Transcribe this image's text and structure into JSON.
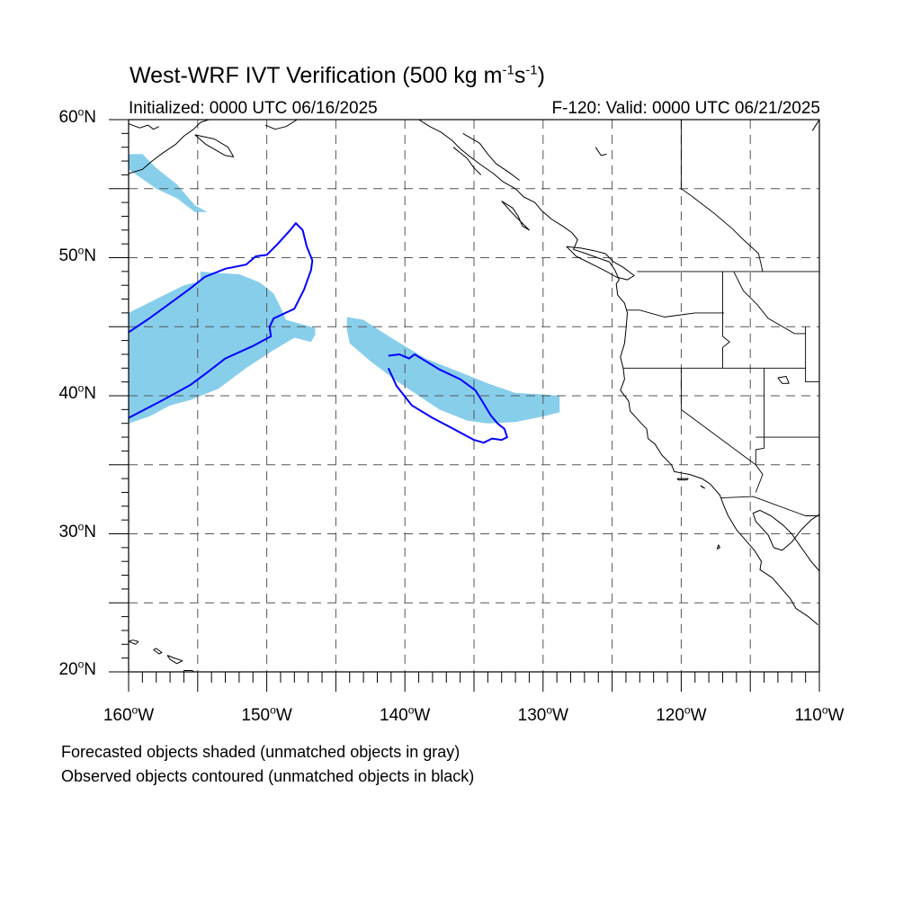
{
  "header": {
    "title_main": "West-WRF IVT Verification (500 kg m",
    "title_exp1": "-1",
    "title_mid": "s",
    "title_exp2": "-1",
    "title_end": ")",
    "initialized": "Initialized: 0000 UTC 06/16/2025",
    "valid": "F-120: Valid: 0000 UTC 06/21/2025"
  },
  "map": {
    "lon_range": [
      -160,
      -110
    ],
    "lat_range": [
      20,
      60
    ],
    "grid": "dashed every 5 degrees",
    "lat_labels": [
      {
        "lat": 60,
        "num": "60",
        "hemi": "N"
      },
      {
        "lat": 50,
        "num": "50",
        "hemi": "N"
      },
      {
        "lat": 40,
        "num": "40",
        "hemi": "N"
      },
      {
        "lat": 30,
        "num": "30",
        "hemi": "N"
      },
      {
        "lat": 20,
        "num": "20",
        "hemi": "N"
      }
    ],
    "lon_labels": [
      {
        "lon": -160,
        "num": "160",
        "hemi": "W"
      },
      {
        "lon": -150,
        "num": "150",
        "hemi": "W"
      },
      {
        "lon": -140,
        "num": "140",
        "hemi": "W"
      },
      {
        "lon": -130,
        "num": "130",
        "hemi": "W"
      },
      {
        "lon": -120,
        "num": "120",
        "hemi": "W"
      },
      {
        "lon": -110,
        "num": "110",
        "hemi": "W"
      }
    ],
    "colors": {
      "forecast_fill": "#87ceeb",
      "observed_line": "#0000ff",
      "coast": "#000000",
      "grid": "#555555"
    }
  },
  "forecast_objects": [
    {
      "name": "alaska-gulf-object",
      "points": [
        [
          -160,
          57.5
        ],
        [
          -159,
          57.5
        ],
        [
          -158,
          56.5
        ],
        [
          -156.5,
          55.3
        ],
        [
          -155.2,
          53.8
        ],
        [
          -154.3,
          53.3
        ],
        [
          -155.2,
          53.3
        ],
        [
          -156.5,
          54.3
        ],
        [
          -158,
          55.0
        ],
        [
          -160,
          56.4
        ]
      ]
    },
    {
      "name": "west-large-object",
      "points": [
        [
          -160,
          46.0
        ],
        [
          -158,
          47.0
        ],
        [
          -156,
          48.0
        ],
        [
          -154.8,
          48.3
        ],
        [
          -154.8,
          49.0
        ],
        [
          -153.8,
          48.9
        ],
        [
          -152,
          48.8
        ],
        [
          -150.5,
          48.2
        ],
        [
          -149.5,
          47.4
        ],
        [
          -149.0,
          46.4
        ],
        [
          -148.6,
          45.5
        ],
        [
          -146.5,
          44.9
        ],
        [
          -146.5,
          44.4
        ],
        [
          -146.8,
          43.9
        ],
        [
          -148.0,
          44.2
        ],
        [
          -149.5,
          43.3
        ],
        [
          -151.5,
          42.0
        ],
        [
          -153.5,
          40.5
        ],
        [
          -155.5,
          39.7
        ],
        [
          -157,
          39.3
        ],
        [
          -158.5,
          38.5
        ],
        [
          -160,
          38.0
        ]
      ]
    },
    {
      "name": "central-band-object",
      "points": [
        [
          -144.2,
          45.7
        ],
        [
          -143.0,
          45.5
        ],
        [
          -141,
          44.2
        ],
        [
          -138.5,
          42.7
        ],
        [
          -136,
          41.7
        ],
        [
          -134,
          40.9
        ],
        [
          -132,
          40.2
        ],
        [
          -130,
          40.1
        ],
        [
          -128.8,
          40.0
        ],
        [
          -128.8,
          38.8
        ],
        [
          -130,
          38.5
        ],
        [
          -132,
          38.1
        ],
        [
          -134,
          38.0
        ],
        [
          -135.5,
          38.2
        ],
        [
          -137.5,
          39.0
        ],
        [
          -139,
          40.0
        ],
        [
          -140.5,
          41.0
        ],
        [
          -142.5,
          42.5
        ],
        [
          -144.0,
          43.8
        ],
        [
          -144.2,
          44.8
        ]
      ]
    }
  ],
  "observed_objects": [
    {
      "name": "west-observed-contour",
      "points": [
        [
          -160,
          44.6
        ],
        [
          -158.5,
          45.6
        ],
        [
          -157,
          46.7
        ],
        [
          -155.5,
          47.8
        ],
        [
          -154.5,
          48.6
        ],
        [
          -153,
          49.2
        ],
        [
          -151.5,
          49.5
        ],
        [
          -150.8,
          50.1
        ],
        [
          -150,
          50.2
        ],
        [
          -149.2,
          51.0
        ],
        [
          -148.3,
          52.0
        ],
        [
          -147.9,
          52.5
        ],
        [
          -147.4,
          52.0
        ],
        [
          -147.1,
          50.8
        ],
        [
          -146.7,
          49.8
        ],
        [
          -146.8,
          49.1
        ],
        [
          -147.3,
          47.7
        ],
        [
          -148.0,
          46.3
        ],
        [
          -149.5,
          45.6
        ],
        [
          -149.8,
          45.0
        ],
        [
          -149.7,
          44.3
        ],
        [
          -151,
          43.6
        ],
        [
          -153,
          42.7
        ],
        [
          -154.3,
          41.7
        ],
        [
          -155.5,
          40.8
        ],
        [
          -157.5,
          39.7
        ],
        [
          -160,
          38.4
        ]
      ]
    },
    {
      "name": "central-observed-contour",
      "points": [
        [
          -141.2,
          42.9
        ],
        [
          -140.4,
          43.0
        ],
        [
          -139.7,
          42.7
        ],
        [
          -139.3,
          43.0
        ],
        [
          -138.8,
          42.7
        ],
        [
          -137.5,
          41.9
        ],
        [
          -136,
          41.2
        ],
        [
          -134.9,
          40.4
        ],
        [
          -134.4,
          39.6
        ],
        [
          -133.8,
          38.6
        ],
        [
          -133.3,
          38.0
        ],
        [
          -132.8,
          37.6
        ],
        [
          -132.6,
          37.0
        ],
        [
          -133.0,
          36.8
        ],
        [
          -133.7,
          36.9
        ],
        [
          -134.3,
          36.6
        ],
        [
          -135.0,
          36.8
        ],
        [
          -136.5,
          37.6
        ],
        [
          -138,
          38.4
        ],
        [
          -139.5,
          39.3
        ],
        [
          -140.6,
          40.7
        ],
        [
          -141.2,
          42.0
        ]
      ]
    }
  ],
  "coastlines": [
    [
      [
        -160,
        56.1
      ],
      [
        -159,
        56.4
      ],
      [
        -158.3,
        57.0
      ],
      [
        -157.5,
        57.6
      ],
      [
        -156.6,
        58.2
      ],
      [
        -156.0,
        58.8
      ],
      [
        -155.3,
        59.3
      ],
      [
        -154.8,
        59.8
      ],
      [
        -154.2,
        60.0
      ]
    ],
    [
      [
        -160,
        59.7
      ],
      [
        -159.2,
        59.4
      ],
      [
        -158.6,
        59.6
      ],
      [
        -158.2,
        59.3
      ],
      [
        -157.8,
        59.5
      ]
    ],
    [
      [
        -155.2,
        58.9
      ],
      [
        -154.4,
        58.2
      ],
      [
        -153.0,
        57.4
      ],
      [
        -152.4,
        57.3
      ],
      [
        -152.8,
        58.0
      ],
      [
        -153.8,
        58.6
      ],
      [
        -155.2,
        58.9
      ]
    ],
    [
      [
        -150.1,
        59.6
      ],
      [
        -149.4,
        59.3
      ],
      [
        -148.6,
        59.5
      ],
      [
        -147.8,
        60.0
      ]
    ],
    [
      [
        -139,
        60
      ],
      [
        -138.2,
        59.5
      ],
      [
        -137.4,
        59.1
      ],
      [
        -136.6,
        58.5
      ],
      [
        -136.0,
        57.9
      ],
      [
        -135.4,
        57.4
      ],
      [
        -134.6,
        56.8
      ],
      [
        -133.6,
        56.1
      ],
      [
        -132.9,
        55.5
      ],
      [
        -132.0,
        55.0
      ],
      [
        -131.4,
        54.4
      ],
      [
        -130.6,
        54.0
      ],
      [
        -130.1,
        53.4
      ],
      [
        -129.4,
        52.8
      ],
      [
        -128.6,
        52.3
      ],
      [
        -127.9,
        51.8
      ],
      [
        -127.5,
        51.3
      ],
      [
        -127.8,
        50.6
      ],
      [
        -126.9,
        50.3
      ],
      [
        -125.8,
        49.9
      ],
      [
        -125.2,
        49.7
      ],
      [
        -124.8,
        49.1
      ],
      [
        -124.5,
        48.4
      ],
      [
        -124.7,
        48.1
      ],
      [
        -124.6,
        47.3
      ],
      [
        -124.1,
        46.7
      ],
      [
        -123.9,
        46.0
      ],
      [
        -124.0,
        44.8
      ],
      [
        -124.1,
        43.8
      ],
      [
        -124.4,
        42.8
      ],
      [
        -124.2,
        42.0
      ],
      [
        -124.1,
        41.2
      ],
      [
        -124.4,
        40.4
      ],
      [
        -123.8,
        39.6
      ],
      [
        -123.7,
        38.9
      ],
      [
        -122.9,
        38.0
      ],
      [
        -122.5,
        37.6
      ],
      [
        -122.4,
        36.9
      ],
      [
        -121.9,
        36.5
      ],
      [
        -121.4,
        35.7
      ],
      [
        -120.7,
        35.0
      ],
      [
        -120.5,
        34.5
      ],
      [
        -119.4,
        34.3
      ],
      [
        -118.5,
        34.0
      ],
      [
        -117.9,
        33.6
      ],
      [
        -117.2,
        32.8
      ],
      [
        -116.9,
        32.0
      ],
      [
        -116.6,
        31.3
      ],
      [
        -116.0,
        30.3
      ],
      [
        -115.4,
        29.6
      ],
      [
        -114.7,
        28.8
      ],
      [
        -114.2,
        28.0
      ],
      [
        -114.3,
        27.4
      ],
      [
        -113.4,
        26.8
      ],
      [
        -112.7,
        26.0
      ],
      [
        -112.1,
        25.3
      ],
      [
        -111.7,
        24.6
      ],
      [
        -110.8,
        24.0
      ],
      [
        -110.1,
        23.4
      ]
    ],
    [
      [
        -133.0,
        54.1
      ],
      [
        -132.2,
        53.6
      ],
      [
        -131.8,
        53.0
      ],
      [
        -131.5,
        52.3
      ],
      [
        -131.0,
        52.0
      ],
      [
        -131.6,
        52.6
      ],
      [
        -132.3,
        53.3
      ],
      [
        -133.0,
        54.1
      ]
    ],
    [
      [
        -125.5,
        50.3
      ],
      [
        -124.9,
        49.7
      ],
      [
        -124.2,
        49.3
      ],
      [
        -123.4,
        48.7
      ],
      [
        -123.9,
        48.4
      ],
      [
        -124.7,
        48.6
      ],
      [
        -125.4,
        49.0
      ],
      [
        -126.2,
        49.4
      ],
      [
        -127.6,
        50.1
      ],
      [
        -128.3,
        50.8
      ],
      [
        -127.3,
        50.7
      ],
      [
        -126.3,
        50.5
      ],
      [
        -125.5,
        50.3
      ]
    ],
    [
      [
        -110,
        31.4
      ],
      [
        -110.6,
        31.0
      ],
      [
        -111.3,
        30.3
      ],
      [
        -112.0,
        29.4
      ],
      [
        -112.7,
        28.8
      ],
      [
        -113.3,
        29.0
      ],
      [
        -113.7,
        29.9
      ],
      [
        -114.6,
        30.9
      ],
      [
        -114.8,
        31.5
      ],
      [
        -114.3,
        31.7
      ],
      [
        -113.5,
        31.3
      ],
      [
        -112.6,
        30.6
      ],
      [
        -112.0,
        30.0
      ],
      [
        -111.3,
        29.0
      ],
      [
        -110.6,
        28.0
      ],
      [
        -110.0,
        27.3
      ]
    ],
    [
      [
        -110,
        60
      ],
      [
        -110.5,
        59.2
      ]
    ],
    [
      [
        -160,
        22.2
      ],
      [
        -159.5,
        22.0
      ],
      [
        -159.3,
        22.2
      ],
      [
        -159.7,
        22.3
      ],
      [
        -160,
        22.2
      ]
    ],
    [
      [
        -158.2,
        21.6
      ],
      [
        -157.8,
        21.3
      ],
      [
        -157.6,
        21.4
      ],
      [
        -158.0,
        21.7
      ],
      [
        -158.2,
        21.6
      ]
    ],
    [
      [
        -157.2,
        21.2
      ],
      [
        -156.7,
        21.0
      ],
      [
        -156.1,
        20.8
      ],
      [
        -156.5,
        20.6
      ],
      [
        -157.0,
        20.9
      ],
      [
        -157.2,
        21.2
      ]
    ],
    [
      [
        -156.0,
        20.1
      ],
      [
        -155.4,
        20.1
      ],
      [
        -154.8,
        19.6
      ],
      [
        -155.4,
        19.3
      ],
      [
        -156.0,
        19.7
      ],
      [
        -156.0,
        20.1
      ]
    ],
    [
      [
        -120.3,
        34.0
      ],
      [
        -119.5,
        34.0
      ],
      [
        -119.6,
        33.9
      ],
      [
        -120.2,
        33.9
      ],
      [
        -120.3,
        34.0
      ]
    ],
    [
      [
        -118.6,
        33.5
      ],
      [
        -118.3,
        33.3
      ],
      [
        -118.5,
        33.4
      ],
      [
        -118.6,
        33.5
      ]
    ],
    [
      [
        -117.4,
        28.9
      ],
      [
        -117.2,
        29.0
      ],
      [
        -117.3,
        29.2
      ],
      [
        -117.4,
        28.9
      ]
    ],
    [
      [
        -135.8,
        59.0
      ],
      [
        -134.6,
        58.3
      ],
      [
        -134.0,
        57.5
      ],
      [
        -133.4,
        56.8
      ],
      [
        -132.5,
        56.2
      ],
      [
        -131.7,
        55.6
      ]
    ],
    [
      [
        -136.5,
        58.0
      ],
      [
        -135.5,
        57.2
      ],
      [
        -135.0,
        56.5
      ],
      [
        -134.5,
        56.0
      ]
    ],
    [
      [
        -113.0,
        41.3
      ],
      [
        -112.4,
        41.4
      ],
      [
        -112.2,
        40.9
      ],
      [
        -112.7,
        40.9
      ],
      [
        -113.0,
        41.3
      ]
    ],
    [
      [
        -126.2,
        58.0
      ],
      [
        -125.8,
        57.4
      ],
      [
        -125.4,
        57.5
      ]
    ]
  ],
  "boundaries": [
    [
      [
        -123.2,
        49.0
      ],
      [
        -110,
        49.0
      ]
    ],
    [
      [
        -124.0,
        46.2
      ],
      [
        -123.0,
        46.2
      ],
      [
        -121.2,
        45.7
      ],
      [
        -119.0,
        46.0
      ],
      [
        -116.9,
        46.0
      ]
    ],
    [
      [
        -124.2,
        42.0
      ],
      [
        -111.0,
        42.0
      ]
    ],
    [
      [
        -120.0,
        42.0
      ],
      [
        -120.0,
        39.0
      ],
      [
        -114.6,
        35.0
      ],
      [
        -114.1,
        34.3
      ],
      [
        -114.6,
        33.0
      ]
    ],
    [
      [
        -117.0,
        49.0
      ],
      [
        -117.0,
        44.3
      ],
      [
        -116.5,
        43.9
      ],
      [
        -117.0,
        43.5
      ],
      [
        -117.0,
        42.0
      ]
    ],
    [
      [
        -114.0,
        42.0
      ],
      [
        -114.0,
        36.2
      ],
      [
        -114.6,
        36.1
      ],
      [
        -114.6,
        35.0
      ]
    ],
    [
      [
        -111.0,
        45.0
      ],
      [
        -111.0,
        41.0
      ],
      [
        -109.9,
        41.0
      ]
    ],
    [
      [
        -114.6,
        37.0
      ],
      [
        -109.9,
        37.0
      ]
    ],
    [
      [
        -117.1,
        32.6
      ],
      [
        -114.8,
        32.7
      ],
      [
        -111.0,
        31.3
      ],
      [
        -110,
        31.3
      ]
    ],
    [
      [
        -120.0,
        60.0
      ],
      [
        -120.0,
        55.0
      ],
      [
        -119.3,
        54.5
      ],
      [
        -117.6,
        53.2
      ],
      [
        -116.3,
        52.1
      ],
      [
        -115.5,
        51.3
      ],
      [
        -114.4,
        50.3
      ],
      [
        -114.1,
        49.0
      ]
    ],
    [
      [
        -116.2,
        49.0
      ],
      [
        -115.5,
        47.6
      ],
      [
        -114.5,
        46.6
      ],
      [
        -113.7,
        45.6
      ],
      [
        -111.8,
        44.5
      ],
      [
        -111.0,
        44.5
      ]
    ]
  ],
  "footnotes": {
    "line1": "Forecasted objects shaded (unmatched objects in gray)",
    "line2": "Observed objects contoured (unmatched objects in black)"
  }
}
